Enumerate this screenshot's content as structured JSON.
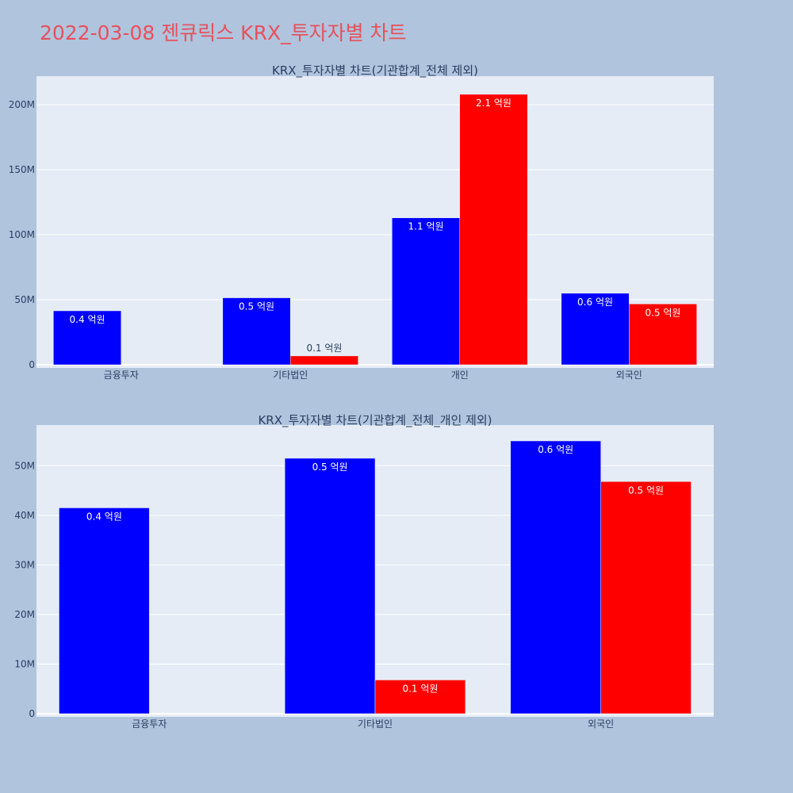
{
  "page": {
    "title": "2022-03-08 젠큐릭스 KRX_투자자별 차트"
  },
  "chart_data": [
    {
      "type": "bar",
      "title": "KRX_투자자별 차트(기관합계_전체 제외)",
      "categories": [
        "금융투자",
        "기타법인",
        "개인",
        "외국인"
      ],
      "ylim": [
        0,
        222000000
      ],
      "yticks": [
        0,
        50000000,
        100000000,
        150000000,
        200000000
      ],
      "yticklabels": [
        "0",
        "50M",
        "100M",
        "150M",
        "200M"
      ],
      "grid": true,
      "series": [
        {
          "color": "#0000ff",
          "values": [
            41500000,
            51500000,
            113000000,
            55000000
          ],
          "labels": [
            "0.4 억원",
            "0.5 억원",
            "1.1 억원",
            "0.6 억원"
          ]
        },
        {
          "color": "#ff0000",
          "values": [
            0,
            6800000,
            208000000,
            46800000
          ],
          "labels": [
            "",
            "0.1 억원",
            "2.1 억원",
            "0.5 억원"
          ]
        }
      ]
    },
    {
      "type": "bar",
      "title": "KRX_투자자별 차트(기관합계_전체_개인 제외)",
      "categories": [
        "금융투자",
        "기타법인",
        "외국인"
      ],
      "ylim": [
        0,
        58200000
      ],
      "yticks": [
        0,
        10000000,
        20000000,
        30000000,
        40000000,
        50000000
      ],
      "yticklabels": [
        "0",
        "10M",
        "20M",
        "30M",
        "40M",
        "50M"
      ],
      "grid": true,
      "series": [
        {
          "color": "#0000ff",
          "values": [
            41500000,
            51500000,
            55000000
          ],
          "labels": [
            "0.4 억원",
            "0.5 억원",
            "0.6 억원"
          ]
        },
        {
          "color": "#ff0000",
          "values": [
            0,
            6800000,
            46800000
          ],
          "labels": [
            "",
            "0.1 억원",
            "0.5 억원"
          ]
        }
      ]
    }
  ]
}
